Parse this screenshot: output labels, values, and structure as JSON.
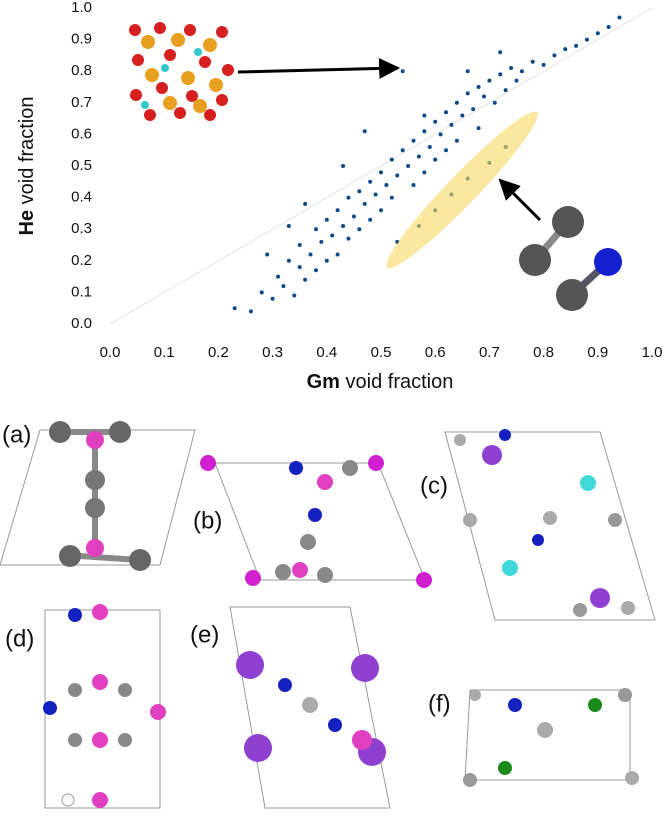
{
  "chart_data": {
    "type": "scatter",
    "xlabel": {
      "bold": "Gm",
      "text": "void fraction"
    },
    "ylabel": {
      "bold": "He",
      "text": "void fraction"
    },
    "color": "#0d4a86",
    "xlim": [
      0,
      1
    ],
    "ylim": [
      0,
      1
    ],
    "xticks": [
      {
        "value": 0,
        "label": "0.0"
      },
      0.1,
      0.2,
      0.3,
      0.4,
      0.5,
      0.6,
      0.7,
      0.8,
      0.9,
      {
        "value": 1,
        "label": "1.0"
      }
    ],
    "yticks": [
      {
        "value": 0,
        "label": "0.0"
      },
      0.1,
      0.2,
      0.3,
      0.4,
      0.5,
      0.6,
      0.7,
      0.8,
      0.9,
      {
        "value": 1,
        "label": "1.0"
      }
    ],
    "grid": false,
    "x": [
      0.23,
      0.26,
      0.28,
      0.3,
      0.31,
      0.32,
      0.33,
      0.34,
      0.35,
      0.35,
      0.36,
      0.37,
      0.38,
      0.38,
      0.39,
      0.4,
      0.4,
      0.41,
      0.42,
      0.42,
      0.43,
      0.44,
      0.44,
      0.45,
      0.46,
      0.46,
      0.47,
      0.48,
      0.48,
      0.49,
      0.5,
      0.5,
      0.51,
      0.52,
      0.52,
      0.53,
      0.54,
      0.54,
      0.55,
      0.56,
      0.56,
      0.57,
      0.58,
      0.58,
      0.59,
      0.6,
      0.6,
      0.61,
      0.62,
      0.62,
      0.63,
      0.64,
      0.64,
      0.65,
      0.66,
      0.67,
      0.68,
      0.68,
      0.69,
      0.7,
      0.71,
      0.72,
      0.73,
      0.74,
      0.75,
      0.76,
      0.78,
      0.8,
      0.82,
      0.84,
      0.86,
      0.88,
      0.9,
      0.92,
      0.94,
      0.53,
      0.57,
      0.6,
      0.63,
      0.66,
      0.7,
      0.73,
      0.47,
      0.43,
      0.33,
      0.29,
      0.36,
      0.58,
      0.66,
      0.72
    ],
    "y": [
      0.05,
      0.04,
      0.1,
      0.08,
      0.15,
      0.12,
      0.2,
      0.09,
      0.18,
      0.25,
      0.14,
      0.22,
      0.3,
      0.17,
      0.26,
      0.2,
      0.33,
      0.28,
      0.36,
      0.22,
      0.31,
      0.4,
      0.27,
      0.34,
      0.42,
      0.3,
      0.38,
      0.45,
      0.33,
      0.41,
      0.48,
      0.36,
      0.44,
      0.52,
      0.4,
      0.47,
      0.55,
      0.8,
      0.5,
      0.58,
      0.44,
      0.53,
      0.61,
      0.48,
      0.56,
      0.64,
      0.52,
      0.6,
      0.67,
      0.55,
      0.63,
      0.7,
      0.58,
      0.66,
      0.73,
      0.68,
      0.75,
      0.62,
      0.72,
      0.77,
      0.7,
      0.79,
      0.74,
      0.81,
      0.77,
      0.8,
      0.83,
      0.82,
      0.85,
      0.87,
      0.88,
      0.9,
      0.92,
      0.94,
      0.97,
      0.26,
      0.31,
      0.36,
      0.41,
      0.46,
      0.51,
      0.56,
      0.61,
      0.5,
      0.31,
      0.22,
      0.38,
      0.66,
      0.8,
      0.86
    ]
  },
  "panels": [
    "(a)",
    "(b)",
    "(c)",
    "(d)",
    "(e)",
    "(f)"
  ]
}
